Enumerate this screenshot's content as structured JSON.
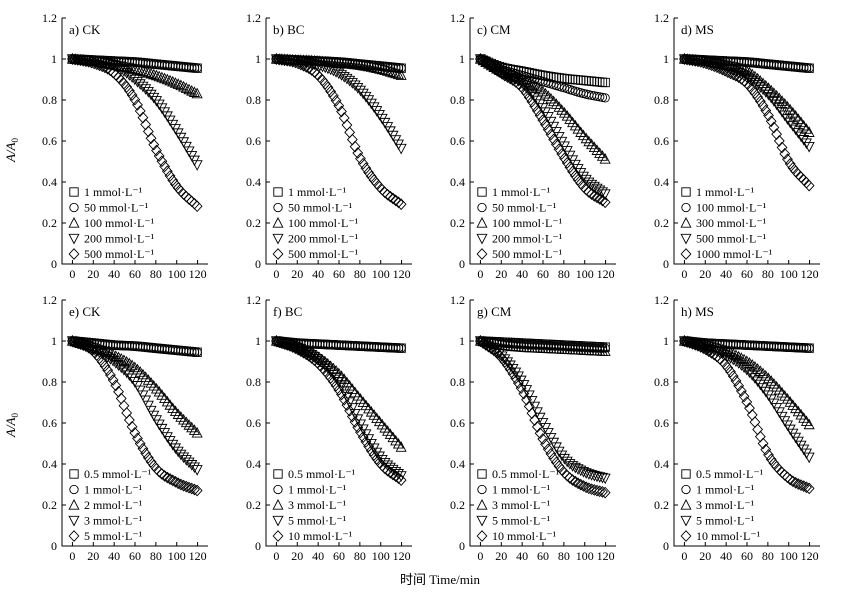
{
  "figure": {
    "ylabel": "A/A",
    "ylabel_sub": "0",
    "xlabel": "时间 Time/min"
  },
  "chart_data": [
    {
      "type": "scatter",
      "panel_label": "a) CK",
      "xlim": [
        -10,
        130
      ],
      "ylim": [
        0,
        1.2
      ],
      "xticks": [
        0,
        20,
        40,
        60,
        80,
        100,
        120
      ],
      "yticks": [
        0,
        0.2,
        0.4,
        0.6,
        0.8,
        1,
        1.2
      ],
      "series": [
        {
          "name": "1 mmol·L⁻¹",
          "marker": "square",
          "x": [
            0,
            20,
            40,
            60,
            80,
            100,
            120
          ],
          "y": [
            1.0,
            0.995,
            0.99,
            0.985,
            0.975,
            0.965,
            0.955
          ]
        },
        {
          "name": "50 mmol·L⁻¹",
          "marker": "circle",
          "x": [
            0,
            20,
            40,
            60,
            80,
            100,
            120
          ],
          "y": [
            1.0,
            0.995,
            0.99,
            0.985,
            0.975,
            0.965,
            0.955
          ]
        },
        {
          "name": "100 mmol·L⁻¹",
          "marker": "triangle-up",
          "x": [
            0,
            20,
            40,
            60,
            80,
            100,
            120
          ],
          "y": [
            1.0,
            0.99,
            0.97,
            0.95,
            0.92,
            0.88,
            0.83
          ]
        },
        {
          "name": "200 mmol·L⁻¹",
          "marker": "triangle-down",
          "x": [
            0,
            20,
            40,
            60,
            80,
            100,
            120
          ],
          "y": [
            1.0,
            0.99,
            0.97,
            0.9,
            0.8,
            0.65,
            0.48
          ]
        },
        {
          "name": "500 mmol·L⁻¹",
          "marker": "diamond",
          "x": [
            0,
            20,
            40,
            60,
            80,
            100,
            120
          ],
          "y": [
            1.0,
            0.98,
            0.93,
            0.8,
            0.56,
            0.38,
            0.28
          ]
        }
      ]
    },
    {
      "type": "scatter",
      "panel_label": "b) BC",
      "xlim": [
        -10,
        130
      ],
      "ylim": [
        0,
        1.2
      ],
      "xticks": [
        0,
        20,
        40,
        60,
        80,
        100,
        120
      ],
      "yticks": [
        0,
        0.2,
        0.4,
        0.6,
        0.8,
        1,
        1.2
      ],
      "series": [
        {
          "name": "1 mmol·L⁻¹",
          "marker": "square",
          "x": [
            0,
            20,
            40,
            60,
            80,
            100,
            120
          ],
          "y": [
            1.0,
            0.995,
            0.99,
            0.985,
            0.975,
            0.965,
            0.955
          ]
        },
        {
          "name": "50 mmol·L⁻¹",
          "marker": "circle",
          "x": [
            0,
            20,
            40,
            60,
            80,
            100,
            120
          ],
          "y": [
            1.0,
            0.995,
            0.99,
            0.985,
            0.975,
            0.965,
            0.955
          ]
        },
        {
          "name": "100 mmol·L⁻¹",
          "marker": "triangle-up",
          "x": [
            0,
            20,
            40,
            60,
            80,
            100,
            120
          ],
          "y": [
            1.0,
            0.995,
            0.99,
            0.98,
            0.97,
            0.95,
            0.92
          ]
        },
        {
          "name": "200 mmol·L⁻¹",
          "marker": "triangle-down",
          "x": [
            0,
            20,
            40,
            60,
            80,
            100,
            120
          ],
          "y": [
            1.0,
            0.99,
            0.97,
            0.93,
            0.85,
            0.72,
            0.56
          ]
        },
        {
          "name": "500 mmol·L⁻¹",
          "marker": "diamond",
          "x": [
            0,
            20,
            40,
            60,
            80,
            100,
            120
          ],
          "y": [
            1.0,
            0.98,
            0.92,
            0.77,
            0.52,
            0.37,
            0.29
          ]
        }
      ]
    },
    {
      "type": "scatter",
      "panel_label": "c) CM",
      "xlim": [
        -10,
        130
      ],
      "ylim": [
        0,
        1.2
      ],
      "xticks": [
        0,
        20,
        40,
        60,
        80,
        100,
        120
      ],
      "yticks": [
        0,
        0.2,
        0.4,
        0.6,
        0.8,
        1,
        1.2
      ],
      "series": [
        {
          "name": "1 mmol·L⁻¹",
          "marker": "square",
          "x": [
            0,
            20,
            40,
            60,
            80,
            100,
            120
          ],
          "y": [
            1.0,
            0.96,
            0.94,
            0.92,
            0.905,
            0.895,
            0.885
          ]
        },
        {
          "name": "50 mmol·L⁻¹",
          "marker": "circle",
          "x": [
            0,
            20,
            40,
            60,
            80,
            100,
            120
          ],
          "y": [
            1.0,
            0.95,
            0.92,
            0.89,
            0.86,
            0.83,
            0.81
          ]
        },
        {
          "name": "100 mmol·L⁻¹",
          "marker": "triangle-up",
          "x": [
            0,
            20,
            40,
            60,
            80,
            100,
            120
          ],
          "y": [
            1.0,
            0.94,
            0.9,
            0.84,
            0.74,
            0.62,
            0.51
          ]
        },
        {
          "name": "200 mmol·L⁻¹",
          "marker": "triangle-down",
          "x": [
            0,
            20,
            40,
            60,
            80,
            100,
            120
          ],
          "y": [
            1.0,
            0.94,
            0.88,
            0.76,
            0.58,
            0.42,
            0.34
          ]
        },
        {
          "name": "500 mmol·L⁻¹",
          "marker": "diamond",
          "x": [
            0,
            20,
            40,
            60,
            80,
            100,
            120
          ],
          "y": [
            1.0,
            0.93,
            0.86,
            0.7,
            0.52,
            0.37,
            0.3
          ]
        }
      ]
    },
    {
      "type": "scatter",
      "panel_label": "d) MS",
      "xlim": [
        -10,
        130
      ],
      "ylim": [
        0,
        1.2
      ],
      "xticks": [
        0,
        20,
        40,
        60,
        80,
        100,
        120
      ],
      "yticks": [
        0,
        0.2,
        0.4,
        0.6,
        0.8,
        1,
        1.2
      ],
      "series": [
        {
          "name": "1 mmol·L⁻¹",
          "marker": "square",
          "x": [
            0,
            20,
            40,
            60,
            80,
            100,
            120
          ],
          "y": [
            1.0,
            0.995,
            0.99,
            0.985,
            0.975,
            0.965,
            0.955
          ]
        },
        {
          "name": "100 mmol·L⁻¹",
          "marker": "circle",
          "x": [
            0,
            20,
            40,
            60,
            80,
            100,
            120
          ],
          "y": [
            1.0,
            0.995,
            0.99,
            0.985,
            0.975,
            0.965,
            0.955
          ]
        },
        {
          "name": "300 mmol·L⁻¹",
          "marker": "triangle-up",
          "x": [
            0,
            20,
            40,
            60,
            80,
            100,
            120
          ],
          "y": [
            1.0,
            0.99,
            0.97,
            0.94,
            0.86,
            0.76,
            0.64
          ]
        },
        {
          "name": "500 mmol·L⁻¹",
          "marker": "triangle-down",
          "x": [
            0,
            20,
            40,
            60,
            80,
            100,
            120
          ],
          "y": [
            1.0,
            0.99,
            0.96,
            0.91,
            0.83,
            0.7,
            0.57
          ]
        },
        {
          "name": "1000 mmol·L⁻¹",
          "marker": "diamond",
          "x": [
            0,
            20,
            40,
            60,
            80,
            100,
            120
          ],
          "y": [
            1.0,
            0.98,
            0.94,
            0.88,
            0.73,
            0.5,
            0.38
          ]
        }
      ]
    },
    {
      "type": "scatter",
      "panel_label": "e) CK",
      "xlim": [
        -10,
        130
      ],
      "ylim": [
        0,
        1.2
      ],
      "xticks": [
        0,
        20,
        40,
        60,
        80,
        100,
        120
      ],
      "yticks": [
        0,
        0.2,
        0.4,
        0.6,
        0.8,
        1,
        1.2
      ],
      "series": [
        {
          "name": "0.5 mmol·L⁻¹",
          "marker": "square",
          "x": [
            0,
            20,
            40,
            60,
            80,
            100,
            120
          ],
          "y": [
            1.0,
            0.99,
            0.98,
            0.975,
            0.965,
            0.955,
            0.945
          ]
        },
        {
          "name": "1 mmol·L⁻¹",
          "marker": "circle",
          "x": [
            0,
            20,
            40,
            60,
            80,
            100,
            120
          ],
          "y": [
            1.0,
            0.99,
            0.98,
            0.975,
            0.965,
            0.955,
            0.945
          ]
        },
        {
          "name": "2 mmol·L⁻¹",
          "marker": "triangle-up",
          "x": [
            0,
            20,
            40,
            60,
            80,
            100,
            120
          ],
          "y": [
            1.0,
            0.97,
            0.93,
            0.87,
            0.77,
            0.65,
            0.55
          ]
        },
        {
          "name": "3 mmol·L⁻¹",
          "marker": "triangle-down",
          "x": [
            0,
            20,
            40,
            60,
            80,
            100,
            120
          ],
          "y": [
            1.0,
            0.96,
            0.9,
            0.8,
            0.62,
            0.47,
            0.37
          ]
        },
        {
          "name": "5 mmol·L⁻¹",
          "marker": "diamond",
          "x": [
            0,
            20,
            40,
            60,
            80,
            100,
            120
          ],
          "y": [
            1.0,
            0.95,
            0.8,
            0.55,
            0.38,
            0.31,
            0.27
          ]
        }
      ]
    },
    {
      "type": "scatter",
      "panel_label": "f) BC",
      "xlim": [
        -10,
        130
      ],
      "ylim": [
        0,
        1.2
      ],
      "xticks": [
        0,
        20,
        40,
        60,
        80,
        100,
        120
      ],
      "yticks": [
        0,
        0.2,
        0.4,
        0.6,
        0.8,
        1,
        1.2
      ],
      "series": [
        {
          "name": "0.5 mmol·L⁻¹",
          "marker": "square",
          "x": [
            0,
            20,
            40,
            60,
            80,
            100,
            120
          ],
          "y": [
            1.0,
            0.99,
            0.985,
            0.98,
            0.975,
            0.97,
            0.965
          ]
        },
        {
          "name": "1 mmol·L⁻¹",
          "marker": "circle",
          "x": [
            0,
            20,
            40,
            60,
            80,
            100,
            120
          ],
          "y": [
            1.0,
            0.99,
            0.985,
            0.98,
            0.975,
            0.97,
            0.965
          ]
        },
        {
          "name": "3 mmol·L⁻¹",
          "marker": "triangle-up",
          "x": [
            0,
            20,
            40,
            60,
            80,
            100,
            120
          ],
          "y": [
            1.0,
            0.97,
            0.92,
            0.84,
            0.72,
            0.6,
            0.48
          ]
        },
        {
          "name": "5 mmol·L⁻¹",
          "marker": "triangle-down",
          "x": [
            0,
            20,
            40,
            60,
            80,
            100,
            120
          ],
          "y": [
            1.0,
            0.97,
            0.91,
            0.8,
            0.6,
            0.43,
            0.34
          ]
        },
        {
          "name": "10 mmol·L⁻¹",
          "marker": "diamond",
          "x": [
            0,
            20,
            40,
            60,
            80,
            100,
            120
          ],
          "y": [
            1.0,
            0.96,
            0.89,
            0.76,
            0.56,
            0.4,
            0.32
          ]
        }
      ]
    },
    {
      "type": "scatter",
      "panel_label": "g) CM",
      "xlim": [
        -10,
        130
      ],
      "ylim": [
        0,
        1.2
      ],
      "xticks": [
        0,
        20,
        40,
        60,
        80,
        100,
        120
      ],
      "yticks": [
        0,
        0.2,
        0.4,
        0.6,
        0.8,
        1,
        1.2
      ],
      "series": [
        {
          "name": "0.5 mmol·L⁻¹",
          "marker": "square",
          "x": [
            0,
            20,
            40,
            60,
            80,
            100,
            120
          ],
          "y": [
            1.0,
            0.995,
            0.99,
            0.985,
            0.98,
            0.975,
            0.97
          ]
        },
        {
          "name": "1 mmol·L⁻¹",
          "marker": "circle",
          "x": [
            0,
            20,
            40,
            60,
            80,
            100,
            120
          ],
          "y": [
            1.0,
            0.99,
            0.985,
            0.98,
            0.975,
            0.97,
            0.965
          ]
        },
        {
          "name": "3 mmol·L⁻¹",
          "marker": "triangle-up",
          "x": [
            0,
            20,
            40,
            60,
            80,
            100,
            120
          ],
          "y": [
            1.0,
            0.98,
            0.97,
            0.965,
            0.96,
            0.955,
            0.95
          ]
        },
        {
          "name": "5 mmol·L⁻¹",
          "marker": "triangle-down",
          "x": [
            0,
            20,
            40,
            60,
            80,
            100,
            120
          ],
          "y": [
            1.0,
            0.93,
            0.8,
            0.6,
            0.43,
            0.36,
            0.33
          ]
        },
        {
          "name": "10 mmol·L⁻¹",
          "marker": "diamond",
          "x": [
            0,
            20,
            40,
            60,
            80,
            100,
            120
          ],
          "y": [
            1.0,
            0.92,
            0.76,
            0.52,
            0.36,
            0.29,
            0.26
          ]
        }
      ]
    },
    {
      "type": "scatter",
      "panel_label": "h) MS",
      "xlim": [
        -10,
        130
      ],
      "ylim": [
        0,
        1.2
      ],
      "xticks": [
        0,
        20,
        40,
        60,
        80,
        100,
        120
      ],
      "yticks": [
        0,
        0.2,
        0.4,
        0.6,
        0.8,
        1,
        1.2
      ],
      "series": [
        {
          "name": "0.5 mmol·L⁻¹",
          "marker": "square",
          "x": [
            0,
            20,
            40,
            60,
            80,
            100,
            120
          ],
          "y": [
            1.0,
            0.99,
            0.985,
            0.98,
            0.975,
            0.97,
            0.965
          ]
        },
        {
          "name": "1 mmol·L⁻¹",
          "marker": "circle",
          "x": [
            0,
            20,
            40,
            60,
            80,
            100,
            120
          ],
          "y": [
            1.0,
            0.99,
            0.985,
            0.98,
            0.975,
            0.97,
            0.965
          ]
        },
        {
          "name": "3 mmol·L⁻¹",
          "marker": "triangle-up",
          "x": [
            0,
            20,
            40,
            60,
            80,
            100,
            120
          ],
          "y": [
            1.0,
            0.98,
            0.95,
            0.9,
            0.82,
            0.71,
            0.59
          ]
        },
        {
          "name": "5 mmol·L⁻¹",
          "marker": "triangle-down",
          "x": [
            0,
            20,
            40,
            60,
            80,
            100,
            120
          ],
          "y": [
            1.0,
            0.97,
            0.93,
            0.86,
            0.74,
            0.58,
            0.43
          ]
        },
        {
          "name": "10 mmol·L⁻¹",
          "marker": "diamond",
          "x": [
            0,
            20,
            40,
            60,
            80,
            100,
            120
          ],
          "y": [
            1.0,
            0.96,
            0.88,
            0.7,
            0.45,
            0.33,
            0.28
          ]
        }
      ]
    }
  ]
}
